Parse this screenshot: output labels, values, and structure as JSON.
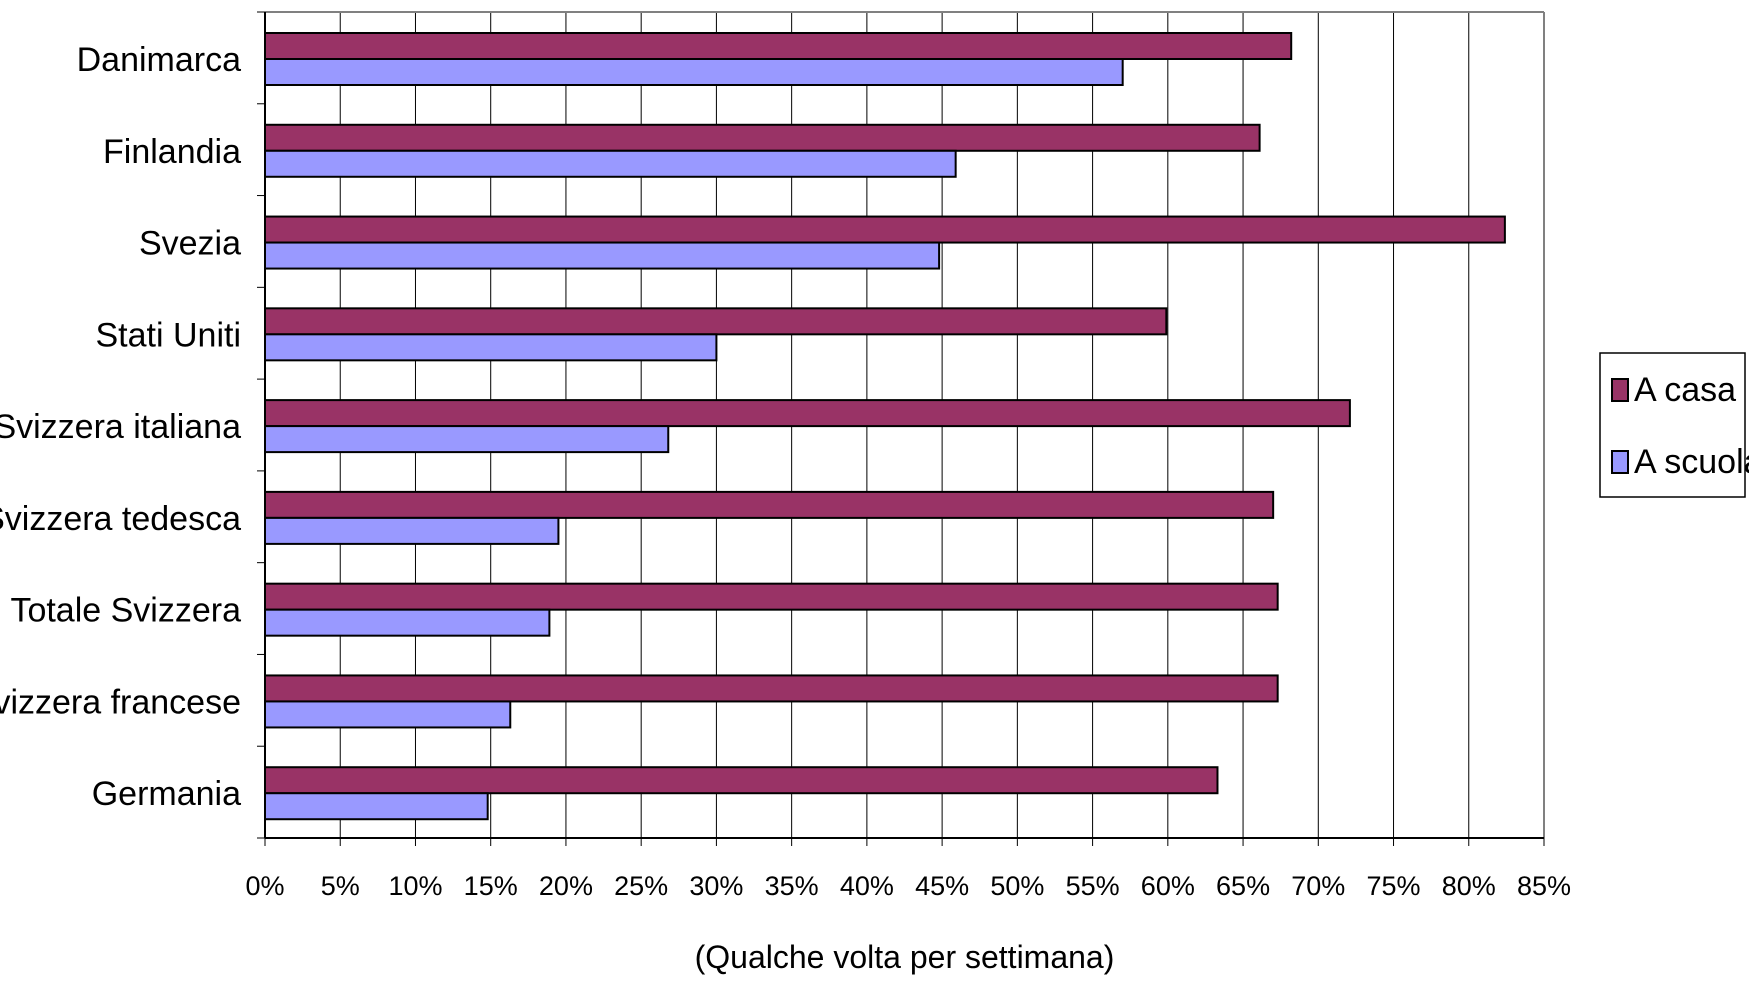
{
  "chart_data": {
    "type": "bar",
    "orientation": "horizontal",
    "categories": [
      "Danimarca",
      "Finlandia",
      "Svezia",
      "Stati Uniti",
      "Svizzera italiana",
      "Svizzera tedesca",
      "Totale Svizzera",
      "Svizzera francese",
      "Germania"
    ],
    "series": [
      {
        "name": "A casa",
        "color": "#993366",
        "values": [
          68.2,
          66.1,
          82.4,
          59.9,
          72.1,
          67.0,
          67.3,
          67.3,
          63.3
        ]
      },
      {
        "name": "A scuola",
        "color": "#9999ff",
        "values": [
          57.0,
          45.9,
          44.8,
          30.0,
          26.8,
          19.5,
          18.9,
          16.3,
          14.8
        ]
      }
    ],
    "xlabel": "(Qualche volta per settimana)",
    "xticks": [
      "0%",
      "5%",
      "10%",
      "15%",
      "20%",
      "25%",
      "30%",
      "35%",
      "40%",
      "45%",
      "50%",
      "55%",
      "60%",
      "65%",
      "70%",
      "75%",
      "80%",
      "85%"
    ],
    "xlim": [
      0,
      85
    ],
    "grid": "vertical",
    "legend_position": "right"
  }
}
